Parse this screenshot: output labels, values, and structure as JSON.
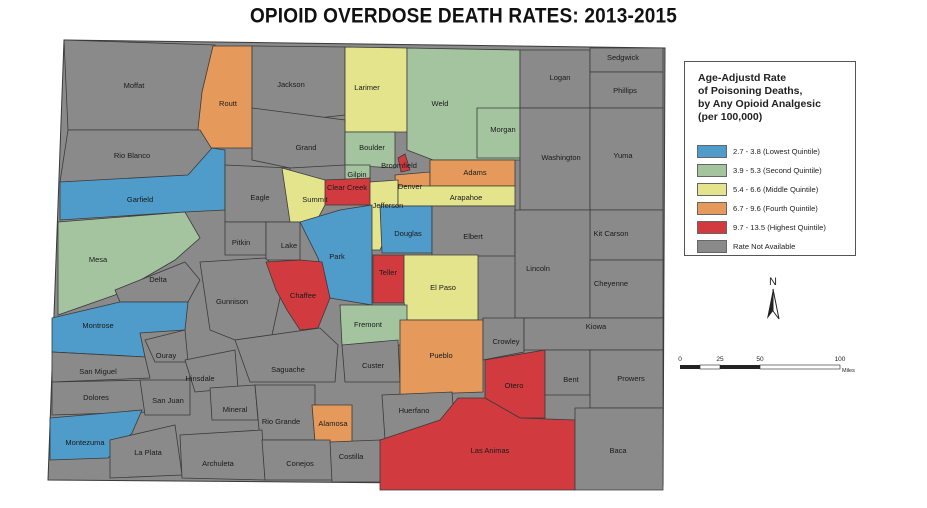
{
  "title": "OPIOID OVERDOSE DEATH RATES:  2013-2015",
  "colors": {
    "q1": "#4f9bc9",
    "q2": "#a4c4a0",
    "q3": "#e4e48c",
    "q4": "#e59a5c",
    "q5": "#d13b3f",
    "na": "#8a8a8a"
  },
  "legend": {
    "title_lines": [
      "Age-Adjustd Rate",
      "of Poisoning Deaths,",
      "by Any Opioid Analgesic",
      "(per 100,000)"
    ],
    "items": [
      {
        "label": "2.7 - 3.8 (Lowest Quintile)",
        "color": "#4f9bc9"
      },
      {
        "label": "3.9 - 5.3 (Second Quintile)",
        "color": "#a4c4a0"
      },
      {
        "label": "5.4 - 6.6 (Middle Quintile)",
        "color": "#e4e48c"
      },
      {
        "label": "6.7 - 9.6 (Fourth Quintile)",
        "color": "#e59a5c"
      },
      {
        "label": "9.7 - 13.5 (Highest Quintile)",
        "color": "#d13b3f"
      },
      {
        "label": "Rate Not Available",
        "color": "#8a8a8a"
      }
    ]
  },
  "north_label": "N",
  "scale": {
    "ticks": [
      "0",
      "25",
      "50",
      "100"
    ],
    "unit": "Miles"
  },
  "counties": [
    {
      "name": "Moffat",
      "class": "na"
    },
    {
      "name": "Routt",
      "class": "q4"
    },
    {
      "name": "Jackson",
      "class": "na"
    },
    {
      "name": "Larimer",
      "class": "q3"
    },
    {
      "name": "Weld",
      "class": "q2"
    },
    {
      "name": "Logan",
      "class": "na"
    },
    {
      "name": "Sedgwick",
      "class": "na"
    },
    {
      "name": "Phillips",
      "class": "na"
    },
    {
      "name": "Morgan",
      "class": "q2"
    },
    {
      "name": "Rio Blanco",
      "class": "na"
    },
    {
      "name": "Grand",
      "class": "na"
    },
    {
      "name": "Boulder",
      "class": "q2"
    },
    {
      "name": "Broomfield",
      "class": "q5"
    },
    {
      "name": "Gilpin",
      "class": "q2"
    },
    {
      "name": "Clear Creek",
      "class": "q5"
    },
    {
      "name": "Denver",
      "class": "q4"
    },
    {
      "name": "Adams",
      "class": "q4"
    },
    {
      "name": "Washington",
      "class": "na"
    },
    {
      "name": "Yuma",
      "class": "na"
    },
    {
      "name": "Garfield",
      "class": "q1"
    },
    {
      "name": "Eagle",
      "class": "na"
    },
    {
      "name": "Summit",
      "class": "q3"
    },
    {
      "name": "Jefferson",
      "class": "q3"
    },
    {
      "name": "Arapahoe",
      "class": "q3"
    },
    {
      "name": "Mesa",
      "class": "q2"
    },
    {
      "name": "Pitkin",
      "class": "na"
    },
    {
      "name": "Lake",
      "class": "na"
    },
    {
      "name": "Park",
      "class": "q1"
    },
    {
      "name": "Douglas",
      "class": "q1"
    },
    {
      "name": "Elbert",
      "class": "na"
    },
    {
      "name": "Kit Carson",
      "class": "na"
    },
    {
      "name": "Lincoln",
      "class": "na"
    },
    {
      "name": "Cheyenne",
      "class": "na"
    },
    {
      "name": "Delta",
      "class": "na"
    },
    {
      "name": "Gunnison",
      "class": "na"
    },
    {
      "name": "Chaffee",
      "class": "q5"
    },
    {
      "name": "Teller",
      "class": "q5"
    },
    {
      "name": "El Paso",
      "class": "q3"
    },
    {
      "name": "Fremont",
      "class": "q2"
    },
    {
      "name": "Montrose",
      "class": "q1"
    },
    {
      "name": "Ouray",
      "class": "na"
    },
    {
      "name": "San Miguel",
      "class": "na"
    },
    {
      "name": "Hinsdale",
      "class": "na"
    },
    {
      "name": "Saguache",
      "class": "na"
    },
    {
      "name": "Custer",
      "class": "na"
    },
    {
      "name": "Pueblo",
      "class": "q4"
    },
    {
      "name": "Crowley",
      "class": "na"
    },
    {
      "name": "Kiowa",
      "class": "na"
    },
    {
      "name": "Dolores",
      "class": "na"
    },
    {
      "name": "San Juan",
      "class": "na"
    },
    {
      "name": "Mineral",
      "class": "na"
    },
    {
      "name": "Rio Grande",
      "class": "na"
    },
    {
      "name": "Alamosa",
      "class": "q4"
    },
    {
      "name": "Huerfano",
      "class": "na"
    },
    {
      "name": "Otero",
      "class": "q5"
    },
    {
      "name": "Bent",
      "class": "na"
    },
    {
      "name": "Prowers",
      "class": "na"
    },
    {
      "name": "Montezuma",
      "class": "q1"
    },
    {
      "name": "La Plata",
      "class": "na"
    },
    {
      "name": "Archuleta",
      "class": "na"
    },
    {
      "name": "Conejos",
      "class": "na"
    },
    {
      "name": "Costilla",
      "class": "na"
    },
    {
      "name": "Las Animas",
      "class": "q5"
    },
    {
      "name": "Baca",
      "class": "na"
    }
  ]
}
